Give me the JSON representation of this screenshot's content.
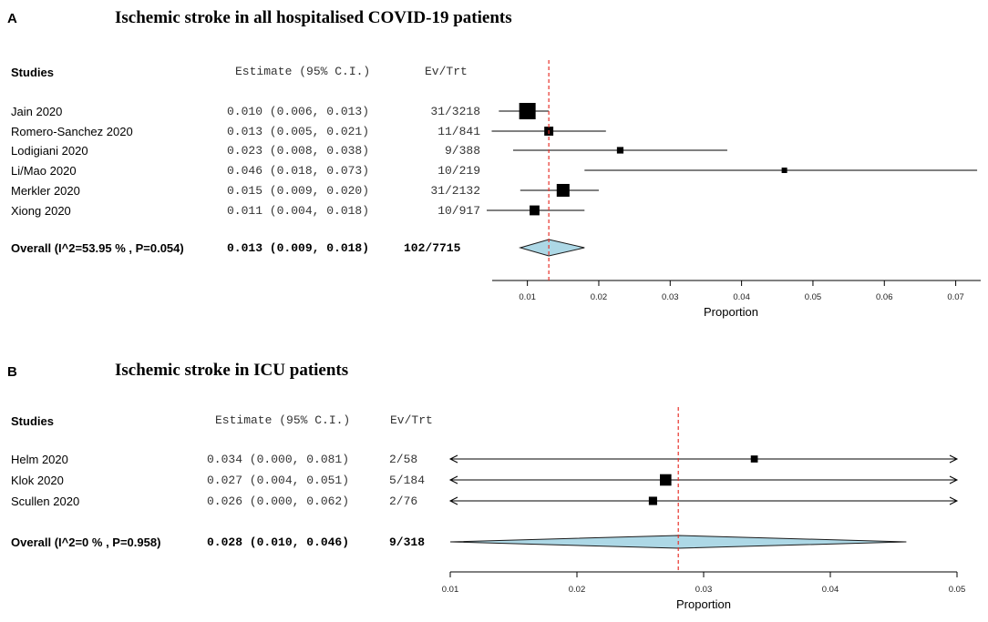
{
  "chart_data": [
    {
      "type": "forest",
      "panel_label": "A",
      "title": "Ischemic stroke in all hospitalised COVID-19 patients",
      "headers": {
        "studies": "Studies",
        "estimate": "Estimate (95% C.I.)",
        "events": "Ev/Trt"
      },
      "xlabel": "Proportion",
      "xlim": [
        0.0043,
        0.0735
      ],
      "ticks": [
        0.01,
        0.02,
        0.03,
        0.04,
        0.05,
        0.06,
        0.07
      ],
      "tick_labels": [
        "0.01",
        "0.02",
        "0.03",
        "0.04",
        "0.05",
        "0.06",
        "0.07"
      ],
      "reference_line": 0.013,
      "studies": [
        {
          "name": "Jain 2020",
          "estimate": 0.01,
          "lower": 0.006,
          "upper": 0.013,
          "estimate_text": "0.010 (0.006, 0.013)",
          "events": "31/3218",
          "weight": 1.0
        },
        {
          "name": "Romero-Sanchez 2020",
          "estimate": 0.013,
          "lower": 0.005,
          "upper": 0.021,
          "estimate_text": "0.013 (0.005, 0.021)",
          "events": "11/841",
          "weight": 0.55
        },
        {
          "name": "Lodigiani 2020",
          "estimate": 0.023,
          "lower": 0.008,
          "upper": 0.038,
          "estimate_text": "0.023 (0.008, 0.038)",
          "events": "9/388",
          "weight": 0.4
        },
        {
          "name": "Li/Mao 2020",
          "estimate": 0.046,
          "lower": 0.018,
          "upper": 0.073,
          "estimate_text": "0.046 (0.018, 0.073)",
          "events": "10/219",
          "weight": 0.3
        },
        {
          "name": "Merkler 2020",
          "estimate": 0.015,
          "lower": 0.009,
          "upper": 0.02,
          "estimate_text": "0.015 (0.009, 0.020)",
          "events": "31/2132",
          "weight": 0.78
        },
        {
          "name": "Xiong 2020",
          "estimate": 0.011,
          "lower": 0.004,
          "upper": 0.018,
          "estimate_text": "0.011 (0.004, 0.018)",
          "events": "10/917",
          "weight": 0.6
        }
      ],
      "overall": {
        "name": "Overall (I^2=53.95 % , P=0.054)",
        "estimate": 0.013,
        "lower": 0.009,
        "upper": 0.018,
        "estimate_text": "0.013 (0.009, 0.018)",
        "events": "102/7715"
      }
    },
    {
      "type": "forest",
      "panel_label": "B",
      "title": "Ischemic stroke in ICU patients",
      "headers": {
        "studies": "Studies",
        "estimate": "Estimate (95% C.I.)",
        "events": "Ev/Trt"
      },
      "xlabel": "Proportion",
      "xlim": [
        0.01,
        0.05
      ],
      "ticks": [
        0.01,
        0.02,
        0.03,
        0.04,
        0.05
      ],
      "tick_labels": [
        "0.01",
        "0.02",
        "0.03",
        "0.04",
        "0.05"
      ],
      "reference_line": 0.028,
      "studies": [
        {
          "name": "Helm 2020",
          "estimate": 0.034,
          "lower": 0.0,
          "upper": 0.081,
          "estimate_text": "0.034 (0.000, 0.081)",
          "events": "2/58",
          "weight": 0.55
        },
        {
          "name": "Klok 2020",
          "estimate": 0.027,
          "lower": 0.004,
          "upper": 0.051,
          "estimate_text": "0.027 (0.004, 0.051)",
          "events": "5/184",
          "weight": 0.9
        },
        {
          "name": "Scullen 2020",
          "estimate": 0.026,
          "lower": 0.0,
          "upper": 0.062,
          "estimate_text": "0.026 (0.000, 0.062)",
          "events": "2/76",
          "weight": 0.65
        }
      ],
      "overall": {
        "name": "Overall (I^2=0 % , P=0.958)",
        "estimate": 0.028,
        "lower": 0.01,
        "upper": 0.046,
        "estimate_text": "0.028 (0.010, 0.046)",
        "events": "9/318"
      }
    }
  ],
  "colors": {
    "reference_line": "#e8312a",
    "diamond_fill": "#add8e6",
    "marker": "#000000",
    "line": "#000000"
  }
}
